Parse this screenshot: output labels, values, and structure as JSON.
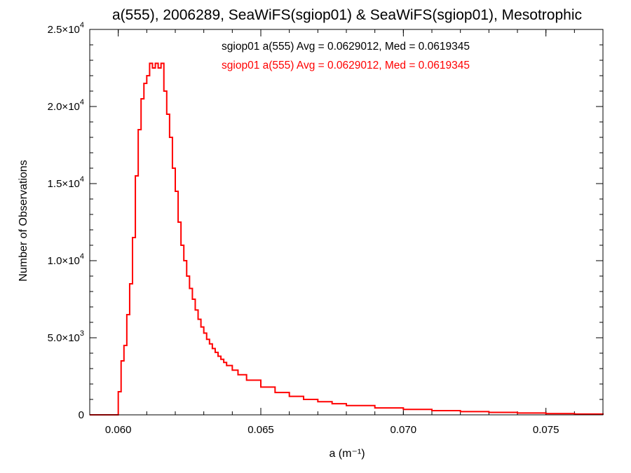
{
  "chart_data": {
    "type": "histogram",
    "title": "a(555), 2006289, SeaWiFS(sgiop01) & SeaWiFS(sgiop01), Mesotrophic",
    "xlabel": "a (m⁻¹)",
    "ylabel": "Number of Observations",
    "xlim": [
      0.059,
      0.077
    ],
    "ylim": [
      0,
      25000
    ],
    "x_ticks": [
      {
        "value": 0.06,
        "label": "0.060"
      },
      {
        "value": 0.065,
        "label": "0.065"
      },
      {
        "value": 0.07,
        "label": "0.070"
      },
      {
        "value": 0.075,
        "label": "0.075"
      }
    ],
    "y_ticks": [
      {
        "value": 0,
        "mant": "0",
        "exp": ""
      },
      {
        "value": 5000,
        "mant": "5.0×10",
        "exp": "3"
      },
      {
        "value": 10000,
        "mant": "1.0×10",
        "exp": "4"
      },
      {
        "value": 15000,
        "mant": "1.5×10",
        "exp": "4"
      },
      {
        "value": 20000,
        "mant": "2.0×10",
        "exp": "4"
      },
      {
        "value": 25000,
        "mant": "2.5×10",
        "exp": "4"
      }
    ],
    "grid": false,
    "annotations": [
      {
        "text": "sgiop01 a(555) Avg = 0.0629012, Med = 0.0619345",
        "color": "#000000"
      },
      {
        "text": "sgiop01 a(555) Avg = 0.0629012, Med = 0.0619345",
        "color": "#ff0000"
      }
    ],
    "series": [
      {
        "color": "#ff0000",
        "x": [
          0.06,
          0.0601,
          0.0602,
          0.0603,
          0.0604,
          0.0605,
          0.0606,
          0.0607,
          0.0608,
          0.0609,
          0.061,
          0.0611,
          0.0612,
          0.0613,
          0.0614,
          0.0615,
          0.0616,
          0.0617,
          0.0618,
          0.0619,
          0.062,
          0.0621,
          0.0622,
          0.0623,
          0.0624,
          0.0625,
          0.0626,
          0.0627,
          0.0628,
          0.0629,
          0.063,
          0.0631,
          0.0632,
          0.0633,
          0.0634,
          0.0635,
          0.0636,
          0.0637,
          0.0638,
          0.064,
          0.0642,
          0.0645,
          0.065,
          0.0655,
          0.066,
          0.0665,
          0.067,
          0.0675,
          0.068,
          0.069,
          0.07,
          0.071,
          0.072,
          0.073,
          0.074,
          0.075,
          0.076,
          0.077
        ],
        "y": [
          1500,
          3500,
          4500,
          6500,
          8500,
          11500,
          15500,
          18500,
          20500,
          21500,
          22000,
          22800,
          22500,
          22800,
          22500,
          22800,
          21000,
          19500,
          18000,
          16000,
          14500,
          12500,
          11000,
          10000,
          9000,
          8200,
          7500,
          6800,
          6200,
          5700,
          5300,
          4900,
          4600,
          4300,
          4050,
          3800,
          3600,
          3400,
          3200,
          2900,
          2600,
          2250,
          1800,
          1450,
          1200,
          1000,
          850,
          720,
          600,
          450,
          350,
          270,
          210,
          160,
          120,
          80,
          50,
          0
        ]
      }
    ]
  }
}
